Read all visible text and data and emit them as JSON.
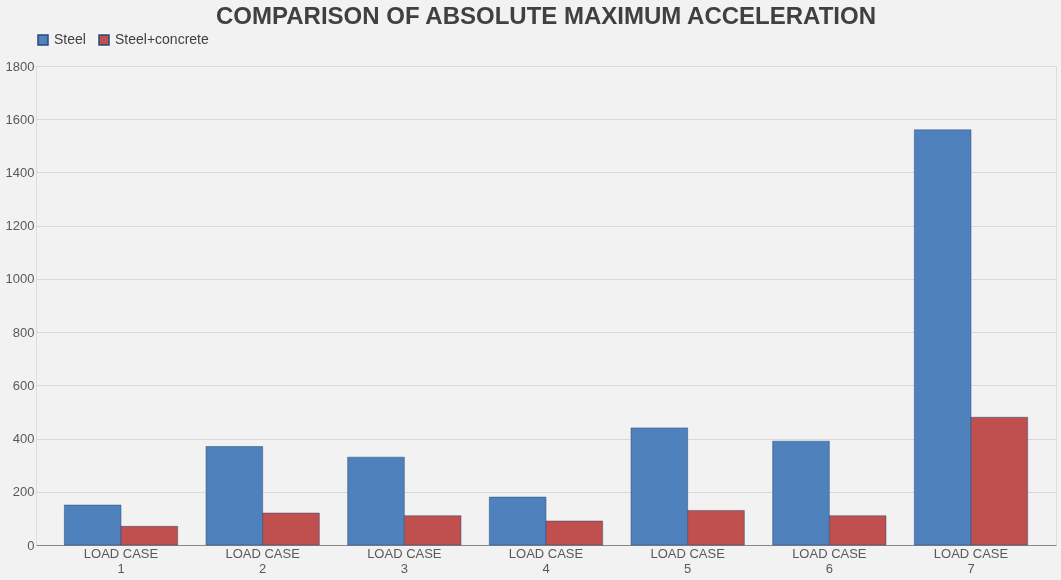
{
  "chart_data": {
    "type": "bar",
    "title": "COMPARISON OF ABSOLUTE MAXIMUM ACCELERATION",
    "categories": [
      [
        "LOAD CASE",
        "1"
      ],
      [
        "LOAD CASE",
        "2"
      ],
      [
        "LOAD CASE",
        "3"
      ],
      [
        "LOAD CASE",
        "4"
      ],
      [
        "LOAD CASE",
        "5"
      ],
      [
        "LOAD CASE",
        "6"
      ],
      [
        "LOAD CASE",
        "7"
      ]
    ],
    "series": [
      {
        "name": "Steel",
        "color": "#4f81bd",
        "values": [
          150,
          370,
          330,
          180,
          440,
          390,
          1560
        ]
      },
      {
        "name": "Steel+concrete",
        "color": "#c0504d",
        "values": [
          70,
          120,
          110,
          90,
          130,
          110,
          480
        ]
      }
    ],
    "ylim": [
      0,
      1800
    ],
    "yticks": [
      0,
      200,
      400,
      600,
      800,
      1000,
      1200,
      1400,
      1600,
      1800
    ],
    "grid": "y",
    "legend": "top"
  }
}
